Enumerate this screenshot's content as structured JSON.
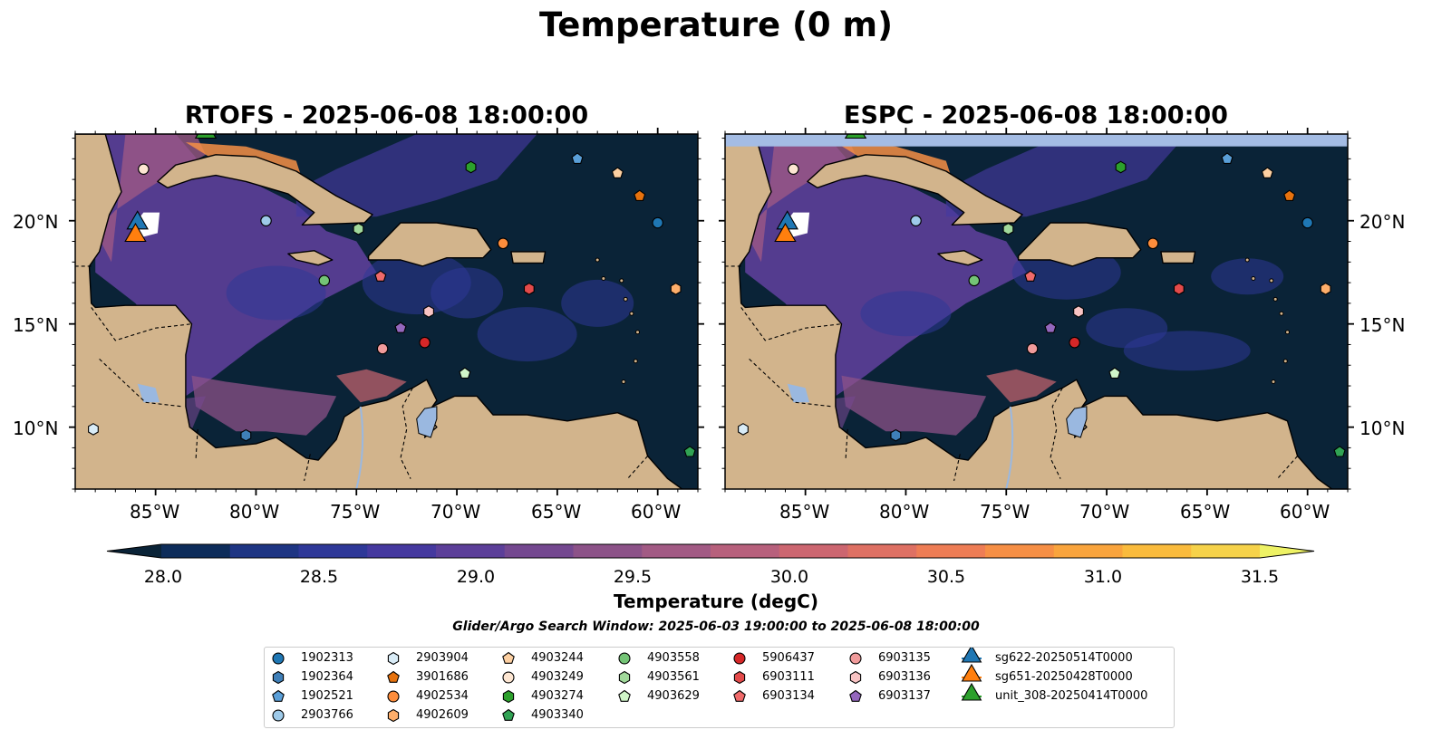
{
  "title": "Temperature (0 m)",
  "panels": [
    {
      "title": "RTOFS - 2025-06-08 18:00:00"
    },
    {
      "title": "ESPC - 2025-06-08 18:00:00"
    }
  ],
  "axes": {
    "x_ticks": [
      "85°W",
      "80°W",
      "75°W",
      "70°W",
      "65°W",
      "60°W"
    ],
    "y_ticks": [
      "20°N",
      "15°N",
      "10°N"
    ]
  },
  "colorbar": {
    "label": "Temperature (degC)",
    "ticks": [
      "28.0",
      "28.5",
      "29.0",
      "29.5",
      "30.0",
      "30.5",
      "31.0",
      "31.5"
    ],
    "colors": [
      "#0a2337",
      "#0d2c5a",
      "#1e3583",
      "#2e3898",
      "#45399f",
      "#5c3f99",
      "#744890",
      "#8c5288",
      "#a25a84",
      "#b7607c",
      "#cc6670",
      "#de7063",
      "#ee7d55",
      "#f68f45",
      "#f9a43d",
      "#fabb3d",
      "#f6d24a",
      "#eef265"
    ]
  },
  "search_window": "Glider/Argo Search Window: 2025-06-03 19:00:00 to 2025-06-08 18:00:00",
  "legend": {
    "columns": [
      [
        {
          "label": "1902313",
          "shape": "circle",
          "color": "#1f77b4"
        },
        {
          "label": "1902364",
          "shape": "hexagon",
          "color": "#3f7fb8"
        },
        {
          "label": "1902521",
          "shape": "pentagon",
          "color": "#5a9fd8"
        },
        {
          "label": "2903766",
          "shape": "circle",
          "color": "#9ecae9"
        }
      ],
      [
        {
          "label": "2903904",
          "shape": "hexagon",
          "color": "#d9ecf7"
        },
        {
          "label": "3901686",
          "shape": "pentagon",
          "color": "#e6720e"
        },
        {
          "label": "4902534",
          "shape": "circle",
          "color": "#fd8d3c"
        },
        {
          "label": "4902609",
          "shape": "hexagon",
          "color": "#fdae6b"
        }
      ],
      [
        {
          "label": "4903244",
          "shape": "pentagon",
          "color": "#fdd0a2"
        },
        {
          "label": "4903249",
          "shape": "circle",
          "color": "#fde6d2"
        },
        {
          "label": "4903274",
          "shape": "hexagon",
          "color": "#2ca02c"
        },
        {
          "label": "4903340",
          "shape": "pentagon",
          "color": "#31a354"
        }
      ],
      [
        {
          "label": "4903558",
          "shape": "circle",
          "color": "#74c476"
        },
        {
          "label": "4903561",
          "shape": "hexagon",
          "color": "#a1d99b"
        },
        {
          "label": "4903629",
          "shape": "pentagon",
          "color": "#d0f5c8"
        }
      ],
      [
        {
          "label": "5906437",
          "shape": "circle",
          "color": "#d62728"
        },
        {
          "label": "6903111",
          "shape": "hexagon",
          "color": "#e34a4a"
        },
        {
          "label": "6903134",
          "shape": "pentagon",
          "color": "#f06a6a"
        }
      ],
      [
        {
          "label": "6903135",
          "shape": "circle",
          "color": "#f19b9b"
        },
        {
          "label": "6903136",
          "shape": "hexagon",
          "color": "#f9c4c4"
        },
        {
          "label": "6903137",
          "shape": "pentagon",
          "color": "#9467bd"
        }
      ],
      [
        {
          "label": "sg622-20250514T0000",
          "shape": "triangle",
          "color": "#1f77b4"
        },
        {
          "label": "sg651-20250428T0000",
          "shape": "triangle",
          "color": "#ff7f0e"
        },
        {
          "label": "unit_308-20250414T0000",
          "shape": "triangle",
          "color": "#2ca02c"
        }
      ]
    ]
  },
  "map": {
    "extent": {
      "lon": [
        -89,
        -58
      ],
      "lat": [
        7,
        24.2
      ]
    },
    "land_color": "#d2b48c",
    "ocean_dark_color": "#0a2337",
    "lake_color": "#9ab8e0",
    "espc_top_band_color": "#a4bce4"
  },
  "markers": [
    {
      "id": "1902313",
      "shape": "circle",
      "color": "#1f77b4",
      "lon": -60.0,
      "lat": 19.9
    },
    {
      "id": "1902364",
      "shape": "hexagon",
      "color": "#3f7fb8",
      "lon": -80.5,
      "lat": 9.6
    },
    {
      "id": "1902521",
      "shape": "pentagon",
      "color": "#5a9fd8",
      "lon": -64.0,
      "lat": 23.0
    },
    {
      "id": "2903766",
      "shape": "circle",
      "color": "#9ecae9",
      "lon": -79.5,
      "lat": 20.0
    },
    {
      "id": "2903904",
      "shape": "hexagon",
      "color": "#d9ecf7",
      "lon": -88.1,
      "lat": 9.9
    },
    {
      "id": "3901686",
      "shape": "pentagon",
      "color": "#e6720e",
      "lon": -60.9,
      "lat": 21.2
    },
    {
      "id": "4902534",
      "shape": "circle",
      "color": "#fd8d3c",
      "lon": -67.7,
      "lat": 18.9
    },
    {
      "id": "4902609",
      "shape": "hexagon",
      "color": "#fdae6b",
      "lon": -59.1,
      "lat": 16.7
    },
    {
      "id": "4903244",
      "shape": "pentagon",
      "color": "#fdd0a2",
      "lon": -62.0,
      "lat": 22.3
    },
    {
      "id": "4903249",
      "shape": "circle",
      "color": "#fde6d2",
      "lon": -85.6,
      "lat": 22.5
    },
    {
      "id": "4903274",
      "shape": "hexagon",
      "color": "#2ca02c",
      "lon": -69.3,
      "lat": 22.6
    },
    {
      "id": "4903340",
      "shape": "pentagon",
      "color": "#31a354",
      "lon": -58.4,
      "lat": 8.8
    },
    {
      "id": "4903558",
      "shape": "circle",
      "color": "#74c476",
      "lon": -76.6,
      "lat": 17.1
    },
    {
      "id": "4903561",
      "shape": "hexagon",
      "color": "#a1d99b",
      "lon": -74.9,
      "lat": 19.6
    },
    {
      "id": "4903629",
      "shape": "pentagon",
      "color": "#d0f5c8",
      "lon": -69.6,
      "lat": 12.6
    },
    {
      "id": "5906437",
      "shape": "circle",
      "color": "#d62728",
      "lon": -71.6,
      "lat": 14.1
    },
    {
      "id": "6903111",
      "shape": "hexagon",
      "color": "#e34a4a",
      "lon": -66.4,
      "lat": 16.7
    },
    {
      "id": "6903134",
      "shape": "pentagon",
      "color": "#f06a6a",
      "lon": -73.8,
      "lat": 17.3
    },
    {
      "id": "6903135",
      "shape": "circle",
      "color": "#f19b9b",
      "lon": -73.7,
      "lat": 13.8
    },
    {
      "id": "6903136",
      "shape": "hexagon",
      "color": "#f9c4c4",
      "lon": -71.4,
      "lat": 15.6
    },
    {
      "id": "6903137",
      "shape": "pentagon",
      "color": "#9467bd",
      "lon": -72.8,
      "lat": 14.8
    },
    {
      "id": "sg622-20250514T0000",
      "shape": "triangle",
      "color": "#1f77b4",
      "lon": -85.9,
      "lat": 19.8
    },
    {
      "id": "sg651-20250428T0000",
      "shape": "triangle",
      "color": "#ff7f0e",
      "lon": -86.0,
      "lat": 19.2
    },
    {
      "id": "unit_308-20250414T0000",
      "shape": "triangle",
      "color": "#2ca02c",
      "lon": -82.5,
      "lat": 24.2
    }
  ]
}
